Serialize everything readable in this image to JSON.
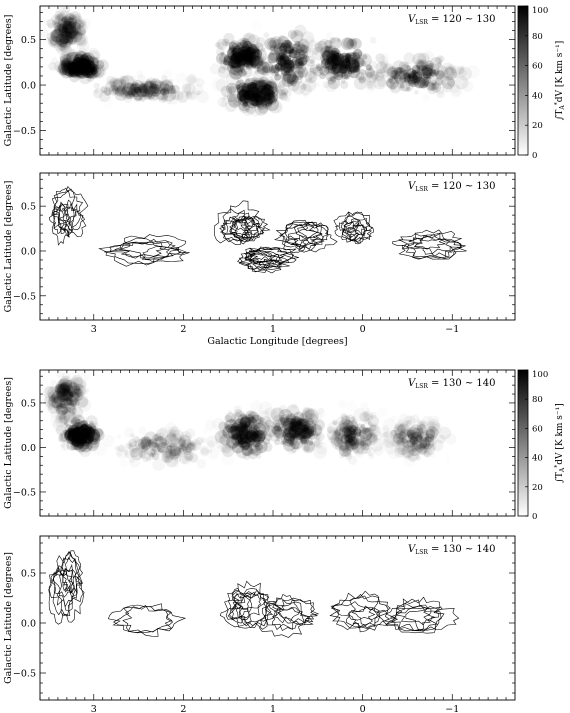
{
  "figure": {
    "panels": [
      {
        "id": "p1",
        "kind": "map",
        "velocity_label": "120 ~ 130",
        "show_xlabel": false
      },
      {
        "id": "p2",
        "kind": "contour",
        "velocity_label": "120 ~ 130",
        "show_xlabel": true
      },
      {
        "id": "p3",
        "kind": "map",
        "velocity_label": "130 ~ 140",
        "show_xlabel": false
      },
      {
        "id": "p4",
        "kind": "contour",
        "velocity_label": "130 ~ 140",
        "show_xlabel": true
      }
    ],
    "ylabel": "Galactic Latitude [degrees]",
    "xlabel": "Galactic Longitude [degrees]",
    "vlsr_label": "V",
    "vlsr_sub": "LSR",
    "vlsr_eq": "=",
    "colorbar_label": "∫T",
    "colorbar_label_rest": "dV  [K km s⁻¹]",
    "colorbar_ticks": [
      "0",
      "20",
      "40",
      "60",
      "80",
      "100"
    ],
    "x_ticks": [
      "3",
      "2",
      "1",
      "0",
      "−1"
    ],
    "y_ticks": [
      "0.5",
      "0.0",
      "−0.5"
    ]
  },
  "chart_data": {
    "type": "heatmap",
    "x_range": [
      3.6,
      -1.7
    ],
    "y_range": [
      -0.77,
      0.87
    ],
    "xlabel": "Galactic Longitude [degrees]",
    "ylabel": "Galactic Latitude [degrees]",
    "colorbar": {
      "label": "∫T*A dV [K km s^-1]",
      "range": [
        0,
        100
      ],
      "ticks": [
        0,
        20,
        40,
        60,
        80,
        100
      ],
      "colormap": "grayscale (white=0, black=100)"
    },
    "x_ticks": [
      3,
      2,
      1,
      0,
      -1
    ],
    "y_ticks": [
      0.5,
      0.0,
      -0.5
    ],
    "panels": [
      {
        "velocity_range": "120 ~ 130",
        "style": "grayscale map",
        "clumps": [
          {
            "l": 3.3,
            "b": 0.6,
            "sl": 0.13,
            "sb": 0.13,
            "peak": 35
          },
          {
            "l": 3.15,
            "b": 0.2,
            "sl": 0.15,
            "sb": 0.08,
            "peak": 75
          },
          {
            "l": 2.4,
            "b": -0.05,
            "sl": 0.35,
            "sb": 0.08,
            "peak": 35
          },
          {
            "l": 1.35,
            "b": 0.32,
            "sl": 0.15,
            "sb": 0.12,
            "peak": 70
          },
          {
            "l": 1.2,
            "b": -0.1,
            "sl": 0.18,
            "sb": 0.1,
            "peak": 75
          },
          {
            "l": 0.85,
            "b": 0.25,
            "sl": 0.22,
            "sb": 0.2,
            "peak": 55
          },
          {
            "l": 0.2,
            "b": 0.25,
            "sl": 0.22,
            "sb": 0.15,
            "peak": 60
          },
          {
            "l": -0.6,
            "b": 0.1,
            "sl": 0.3,
            "sb": 0.12,
            "peak": 45
          }
        ]
      },
      {
        "velocity_range": "120 ~ 130",
        "style": "contour map",
        "clumps": [
          {
            "l": 3.3,
            "b": 0.4,
            "sl": 0.13,
            "sb": 0.2,
            "peak": 60
          },
          {
            "l": 2.35,
            "b": 0.0,
            "sl": 0.3,
            "sb": 0.1,
            "peak": 45
          },
          {
            "l": 1.35,
            "b": 0.3,
            "sl": 0.18,
            "sb": 0.15,
            "peak": 80
          },
          {
            "l": 1.1,
            "b": -0.1,
            "sl": 0.2,
            "sb": 0.1,
            "peak": 70
          },
          {
            "l": 0.65,
            "b": 0.15,
            "sl": 0.2,
            "sb": 0.12,
            "peak": 65
          },
          {
            "l": 0.1,
            "b": 0.25,
            "sl": 0.15,
            "sb": 0.12,
            "peak": 55
          },
          {
            "l": -0.7,
            "b": 0.05,
            "sl": 0.25,
            "sb": 0.12,
            "peak": 50
          }
        ]
      },
      {
        "velocity_range": "130 ~ 140",
        "style": "grayscale map",
        "clumps": [
          {
            "l": 3.3,
            "b": 0.55,
            "sl": 0.12,
            "sb": 0.15,
            "peak": 35
          },
          {
            "l": 3.15,
            "b": 0.15,
            "sl": 0.12,
            "sb": 0.1,
            "peak": 80
          },
          {
            "l": 2.2,
            "b": 0.0,
            "sl": 0.35,
            "sb": 0.12,
            "peak": 25
          },
          {
            "l": 1.3,
            "b": 0.15,
            "sl": 0.18,
            "sb": 0.15,
            "peak": 55
          },
          {
            "l": 0.75,
            "b": 0.2,
            "sl": 0.2,
            "sb": 0.15,
            "peak": 45
          },
          {
            "l": 0.1,
            "b": 0.15,
            "sl": 0.18,
            "sb": 0.15,
            "peak": 35
          },
          {
            "l": -0.6,
            "b": 0.1,
            "sl": 0.2,
            "sb": 0.12,
            "peak": 30
          }
        ]
      },
      {
        "velocity_range": "130 ~ 140",
        "style": "contour map",
        "clumps": [
          {
            "l": 3.3,
            "b": 0.4,
            "sl": 0.13,
            "sb": 0.22,
            "peak": 55
          },
          {
            "l": 2.3,
            "b": 0.0,
            "sl": 0.3,
            "sb": 0.1,
            "peak": 35
          },
          {
            "l": 1.3,
            "b": 0.15,
            "sl": 0.18,
            "sb": 0.15,
            "peak": 65
          },
          {
            "l": 0.8,
            "b": 0.1,
            "sl": 0.2,
            "sb": 0.12,
            "peak": 50
          },
          {
            "l": 0.05,
            "b": 0.1,
            "sl": 0.2,
            "sb": 0.12,
            "peak": 40
          },
          {
            "l": -0.65,
            "b": 0.05,
            "sl": 0.25,
            "sb": 0.12,
            "peak": 40
          }
        ]
      }
    ]
  }
}
